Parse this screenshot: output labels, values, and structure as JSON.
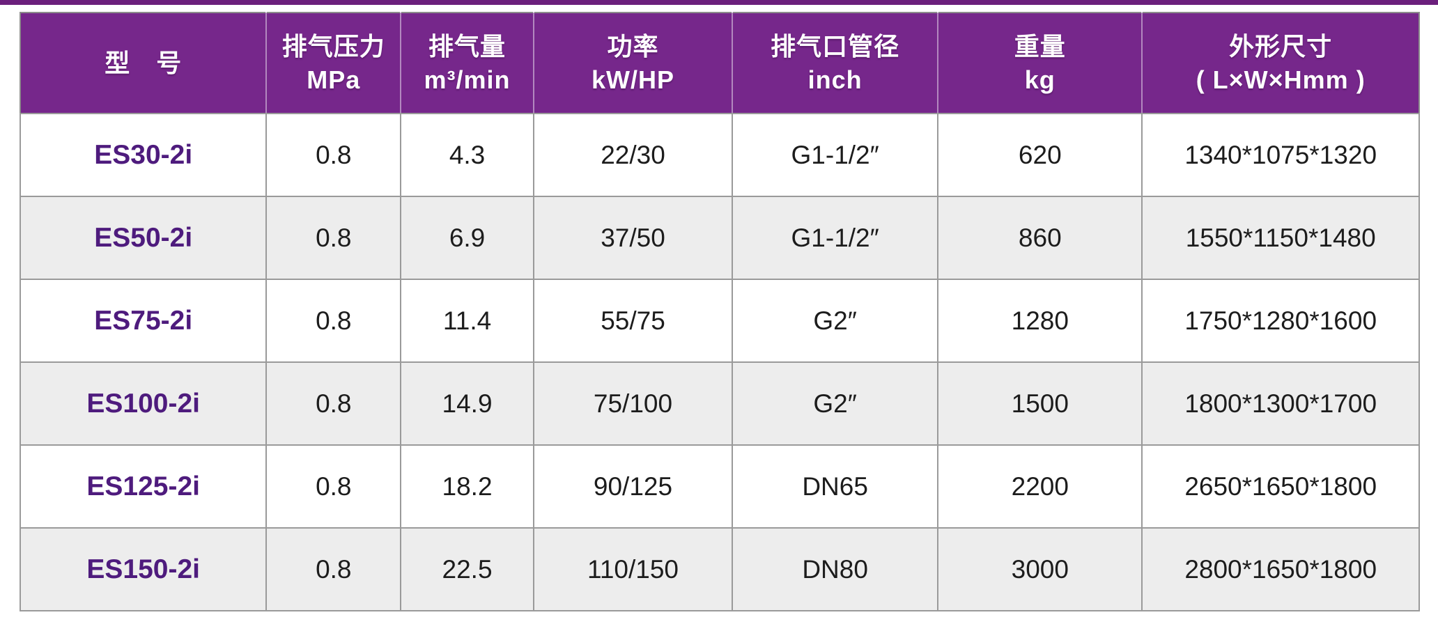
{
  "page": {
    "description": "Product specification table for ES-2i series air compressors",
    "accent_bar_color": "#6B1F7C",
    "background_color": "#FFFFFF"
  },
  "theme": {
    "header_background": "#76278B",
    "header_text_color": "#FFFFFF",
    "model_text_color": "#4E1B7D",
    "cell_text_color": "#1C1C1C",
    "alternate_row_background": "#EDEDED",
    "border_color": "#9A9A9A"
  },
  "table": {
    "columns": [
      {
        "id": "model",
        "title": "型　号",
        "unit": ""
      },
      {
        "id": "pressure",
        "title": "排气压力",
        "unit": "MPa"
      },
      {
        "id": "capacity",
        "title": "排气量",
        "unit": "m³/min"
      },
      {
        "id": "power",
        "title": "功率",
        "unit": "kW/HP"
      },
      {
        "id": "outlet",
        "title": "排气口管径",
        "unit": "inch"
      },
      {
        "id": "weight",
        "title": "重量",
        "unit": "kg"
      },
      {
        "id": "dimensions",
        "title": "外形尺寸",
        "unit": "( L×W×Hmm )"
      }
    ],
    "rows": [
      {
        "model": "ES30-2i",
        "pressure": "0.8",
        "capacity": "4.3",
        "power": "22/30",
        "outlet": "G1-1/2″",
        "weight": "620",
        "dimensions": "1340*1075*1320"
      },
      {
        "model": "ES50-2i",
        "pressure": "0.8",
        "capacity": "6.9",
        "power": "37/50",
        "outlet": "G1-1/2″",
        "weight": "860",
        "dimensions": "1550*1150*1480"
      },
      {
        "model": "ES75-2i",
        "pressure": "0.8",
        "capacity": "11.4",
        "power": "55/75",
        "outlet": "G2″",
        "weight": "1280",
        "dimensions": "1750*1280*1600"
      },
      {
        "model": "ES100-2i",
        "pressure": "0.8",
        "capacity": "14.9",
        "power": "75/100",
        "outlet": "G2″",
        "weight": "1500",
        "dimensions": "1800*1300*1700"
      },
      {
        "model": "ES125-2i",
        "pressure": "0.8",
        "capacity": "18.2",
        "power": "90/125",
        "outlet": "DN65",
        "weight": "2200",
        "dimensions": "2650*1650*1800"
      },
      {
        "model": "ES150-2i",
        "pressure": "0.8",
        "capacity": "22.5",
        "power": "110/150",
        "outlet": "DN80",
        "weight": "3000",
        "dimensions": "2800*1650*1800"
      }
    ]
  }
}
